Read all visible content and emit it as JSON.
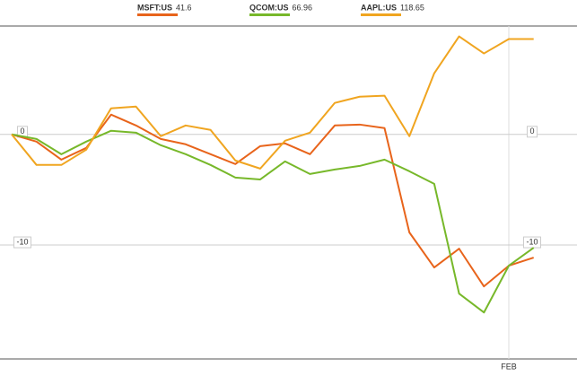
{
  "chart_data": {
    "type": "line",
    "categories": [
      null,
      null,
      null,
      null,
      null,
      null,
      null,
      null,
      null,
      null,
      null,
      null,
      null,
      null,
      null,
      null,
      null,
      null,
      null,
      null,
      "FEB",
      null
    ],
    "series": [
      {
        "name": "MSFT:US",
        "legend_value": 41.6,
        "color": "#e8641b",
        "values": [
          0,
          -0.65,
          -2.28,
          -1.22,
          1.79,
          0.81,
          -0.41,
          -0.89,
          -1.79,
          -2.68,
          -1.06,
          -0.81,
          -1.79,
          0.81,
          0.89,
          0.57,
          -8.86,
          -12.03,
          -10.33,
          -13.74,
          -11.87,
          -11.14
        ]
      },
      {
        "name": "QCOM:US",
        "legend_value": 66.96,
        "color": "#77b82a",
        "values": [
          0,
          -0.41,
          -1.79,
          -0.65,
          0.33,
          0.16,
          -0.98,
          -1.79,
          -2.76,
          -3.9,
          -4.07,
          -2.44,
          -3.58,
          -3.17,
          -2.85,
          -2.28,
          -3.33,
          -4.47,
          -14.39,
          -16.1,
          -11.87,
          -10.24
        ]
      },
      {
        "name": "AAPL:US",
        "legend_value": 118.65,
        "color": "#f0a520",
        "values": [
          0,
          -2.76,
          -2.76,
          -1.38,
          2.36,
          2.52,
          -0.16,
          0.81,
          0.41,
          -2.36,
          -3.09,
          -0.57,
          0.16,
          2.85,
          3.41,
          3.5,
          -0.16,
          5.53,
          8.86,
          7.32,
          8.62,
          8.62
        ]
      }
    ],
    "ylim": [
      -20.3,
      9.8
    ],
    "yticks": [
      0,
      -10
    ],
    "grid": true
  }
}
